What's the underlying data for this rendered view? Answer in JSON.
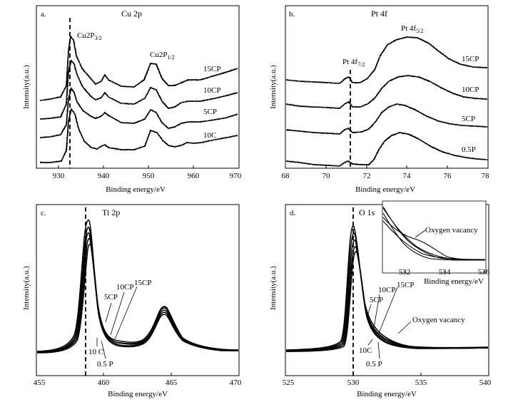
{
  "chart_data": [
    {
      "type": "line",
      "panel_label": "a.",
      "title": "Cu 2p",
      "xlabel": "Binding energy/eV",
      "ylabel": "Intensity(a.u.)",
      "xlim": [
        925,
        970
      ],
      "xticks": [
        "930",
        "940",
        "950",
        "960",
        "970"
      ],
      "series": [
        {
          "name": "15CP",
          "values": "Cu 2p3/2 ~932.5, Cu 2p1/2 ~952.3, satellites ~943 and ~962"
        },
        {
          "name": "10CP",
          "values": "peaks ~932.5 and ~952.3"
        },
        {
          "name": "5CP",
          "values": "peaks ~932.5 and ~952.3"
        },
        {
          "name": "10C",
          "values": "peaks ~932.5 and ~952.3"
        }
      ],
      "annotations": {
        "peak1": "Cu2P",
        "peak1_sub": "3/2",
        "peak2": "Cu2P",
        "peak2_sub": "1/2",
        "dashed_line_x": 932.3
      }
    },
    {
      "type": "line",
      "panel_label": "b.",
      "title": "Pt 4f",
      "xlabel": "Binding energy/eV",
      "ylabel": "Intensity(a.u.)",
      "xlim": [
        68,
        78
      ],
      "xticks": [
        "68",
        "70",
        "72",
        "74",
        "76",
        "78"
      ],
      "series": [
        {
          "name": "15CP",
          "values": "Pt 4f7/2 ~71.2, broad max ~73.7"
        },
        {
          "name": "10CP",
          "values": "~71.2 shoulder, broad max ~73.6"
        },
        {
          "name": "5CP",
          "values": "~71.2 shoulder, broad max ~73.4"
        },
        {
          "name": "0.5P",
          "values": "~71.2 shoulder, broad max ~73.7"
        }
      ],
      "annotations": {
        "peak1": "Pt 4f",
        "peak1_sub": "7/2",
        "peak2": "Pt 4f",
        "peak2_sub": "5/2",
        "dashed_line_x": 71.2
      }
    },
    {
      "type": "line",
      "panel_label": "c.",
      "title": "Ti 2p",
      "xlabel": "Binding energy/eV",
      "ylabel": "Intensity(a.u.)",
      "xlim": [
        455,
        470
      ],
      "xticks": [
        "455",
        "460",
        "465",
        "470"
      ],
      "series": [
        {
          "name": "15CP",
          "values": "Ti 2p3/2 ~458.6, Ti 2p1/2 ~464.3"
        },
        {
          "name": "10CP",
          "values": "~458.6, ~464.3"
        },
        {
          "name": "5CP",
          "values": "~458.6, ~464.3"
        },
        {
          "name": "10 C",
          "values": "~458.6, ~464.3"
        },
        {
          "name": "0.5 P",
          "values": "~458.6, ~464.3"
        }
      ],
      "annotations": {
        "dashed_line_x": 458.5
      }
    },
    {
      "type": "line",
      "panel_label": "d.",
      "title": "O 1s",
      "xlabel": "Binding energy/eV",
      "ylabel": "Intensity(a.u.)",
      "xlim": [
        525,
        540
      ],
      "xticks": [
        "525",
        "530",
        "535",
        "540"
      ],
      "series": [
        {
          "name": "15CP",
          "values": "lattice O ~529.9, vacancy shoulder ~531.5"
        },
        {
          "name": "10CP",
          "values": "~529.9"
        },
        {
          "name": "5CP",
          "values": "~529.9"
        },
        {
          "name": "10C",
          "values": "~529.9"
        },
        {
          "name": "0.5 P",
          "values": "~529.9"
        }
      ],
      "annotations": {
        "dashed_line_x": 529.8,
        "main_note": "Oxygen vacancy",
        "inset_note": "Oxygen vacancy"
      },
      "inset": {
        "xlabel": "Binding energy/eV",
        "xlim": [
          531,
          536
        ],
        "xticks": [
          "532",
          "534",
          "536"
        ]
      }
    }
  ]
}
